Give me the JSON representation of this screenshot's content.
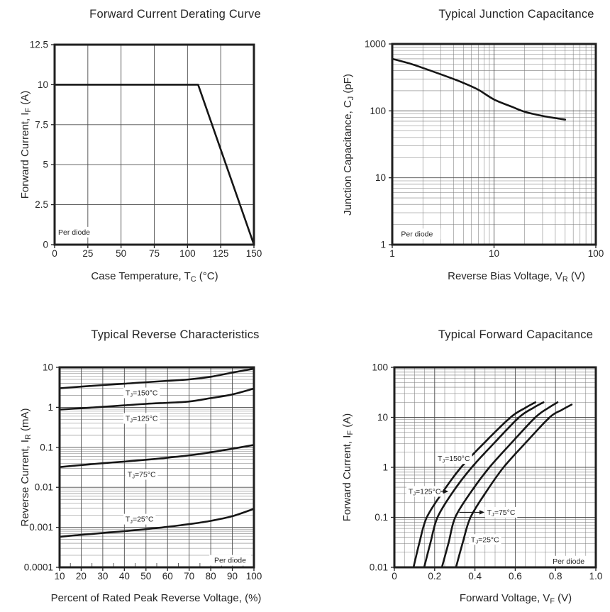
{
  "style": {
    "background": "#ffffff",
    "text_color": "#262626",
    "frame_color": "#1f1f1f",
    "curve_color": "#161616",
    "grid_major_color": "#4d4d4d",
    "grid_minor_color": "#7e7e7e"
  },
  "chart_data": [
    {
      "type": "line",
      "title": "Forward Current Derating Curve",
      "xlabel": "Case Temperature, T_C_ (°C)",
      "ylabel": "Forward Current, I_F_ (A)",
      "x_axis": {
        "scale": "linear",
        "min": 0,
        "max": 150,
        "grid": [
          25,
          50,
          75,
          100,
          125
        ],
        "ticks": [
          {
            "v": 0,
            "label": "0"
          },
          {
            "v": 25,
            "label": "25"
          },
          {
            "v": 50,
            "label": "50"
          },
          {
            "v": 75,
            "label": "75"
          },
          {
            "v": 100,
            "label": "100"
          },
          {
            "v": 125,
            "label": "125"
          },
          {
            "v": 150,
            "label": "150"
          }
        ]
      },
      "y_axis": {
        "scale": "linear",
        "min": 0,
        "max": 12.5,
        "grid": [
          2.5,
          5,
          7.5,
          10
        ],
        "ticks": [
          {
            "v": 0,
            "label": "0"
          },
          {
            "v": 2.5,
            "label": "2.5"
          },
          {
            "v": 5,
            "label": "5"
          },
          {
            "v": 7.5,
            "label": "7.5"
          },
          {
            "v": 10,
            "label": "10"
          },
          {
            "v": 12.5,
            "label": "12.5"
          }
        ]
      },
      "series": [
        {
          "name": "max-forward-current",
          "smooth": false,
          "points": [
            [
              0,
              10
            ],
            [
              108,
              10
            ],
            [
              150,
              0
            ]
          ]
        }
      ],
      "annotations": [
        {
          "text": "Per diode",
          "x": 2.7,
          "y": 0.78,
          "anchor": "start"
        }
      ]
    },
    {
      "type": "line",
      "title": "Typical Junction Capacitance",
      "xlabel": "Reverse Bias Voltage, V_R_ (V)",
      "ylabel": "Junction Capacitance, C_J_ (pF)",
      "x_axis": {
        "scale": "log",
        "min": 1,
        "max": 100,
        "grid": [
          10
        ],
        "minor": "log",
        "ticks": [
          {
            "v": 1,
            "label": "1"
          },
          {
            "v": 10,
            "label": "10"
          },
          {
            "v": 100,
            "label": "100"
          }
        ]
      },
      "y_axis": {
        "scale": "log",
        "min": 1,
        "max": 1000,
        "grid": [
          10,
          100
        ],
        "minor": "log",
        "ticks": [
          {
            "v": 1,
            "label": "1"
          },
          {
            "v": 10,
            "label": "10"
          },
          {
            "v": 100,
            "label": "100"
          },
          {
            "v": 1000,
            "label": "1000"
          }
        ]
      },
      "series": [
        {
          "name": "junction-capacitance",
          "points": [
            [
              1,
              600
            ],
            [
              1.5,
              508
            ],
            [
              2,
              438
            ],
            [
              3,
              352
            ],
            [
              5,
              262
            ],
            [
              7,
              207
            ],
            [
              10,
              148
            ],
            [
              15,
              115
            ],
            [
              20,
              97
            ],
            [
              30,
              84
            ],
            [
              40,
              78
            ],
            [
              50,
              74
            ]
          ]
        }
      ],
      "annotations": [
        {
          "text": "Per diode",
          "x": 1.22,
          "y": 1.45,
          "anchor": "start"
        }
      ]
    },
    {
      "type": "line",
      "title": "Typical Reverse Characteristics",
      "xlabel": "Percent of Rated Peak Reverse Voltage, (%)",
      "ylabel": "Reverse Current, I_R_ (mA)",
      "x_axis": {
        "scale": "linear",
        "min": 10,
        "max": 100,
        "grid": [
          20,
          30,
          40,
          50,
          60,
          70,
          80,
          90
        ],
        "inner_ticks": [
          15,
          25,
          35,
          45,
          55,
          65,
          75,
          85,
          95
        ],
        "ticks": [
          {
            "v": 10,
            "label": "10"
          },
          {
            "v": 20,
            "label": "20"
          },
          {
            "v": 30,
            "label": "30"
          },
          {
            "v": 40,
            "label": "40"
          },
          {
            "v": 50,
            "label": "50"
          },
          {
            "v": 60,
            "label": "60"
          },
          {
            "v": 70,
            "label": "70"
          },
          {
            "v": 80,
            "label": "80"
          },
          {
            "v": 90,
            "label": "90"
          },
          {
            "v": 100,
            "label": "100"
          }
        ]
      },
      "y_axis": {
        "scale": "log",
        "min": 0.0001,
        "max": 10,
        "grid": [
          0.001,
          0.01,
          0.1,
          1
        ],
        "minor": "log",
        "ticks": [
          {
            "v": 10,
            "label": "10"
          },
          {
            "v": 1,
            "label": "1"
          },
          {
            "v": 0.1,
            "label": "0.1"
          },
          {
            "v": 0.01,
            "label": "0.01"
          },
          {
            "v": 0.001,
            "label": "0.001"
          },
          {
            "v": 0.0001,
            "label": "0.0001"
          }
        ]
      },
      "series": [
        {
          "name": "TJ=150C",
          "points": [
            [
              10,
              3.0
            ],
            [
              20,
              3.3
            ],
            [
              30,
              3.6
            ],
            [
              40,
              3.9
            ],
            [
              50,
              4.25
            ],
            [
              60,
              4.6
            ],
            [
              70,
              5.0
            ],
            [
              80,
              5.8
            ],
            [
              90,
              7.4
            ],
            [
              100,
              9.2
            ]
          ]
        },
        {
          "name": "TJ=125C",
          "points": [
            [
              10,
              0.88
            ],
            [
              20,
              0.95
            ],
            [
              30,
              1.03
            ],
            [
              40,
              1.12
            ],
            [
              50,
              1.22
            ],
            [
              60,
              1.3
            ],
            [
              70,
              1.4
            ],
            [
              80,
              1.7
            ],
            [
              90,
              2.1
            ],
            [
              100,
              2.95
            ]
          ]
        },
        {
          "name": "TJ=75C",
          "points": [
            [
              10,
              0.032
            ],
            [
              20,
              0.036
            ],
            [
              30,
              0.04
            ],
            [
              40,
              0.044
            ],
            [
              50,
              0.049
            ],
            [
              60,
              0.055
            ],
            [
              70,
              0.063
            ],
            [
              80,
              0.075
            ],
            [
              90,
              0.092
            ],
            [
              100,
              0.115
            ]
          ]
        },
        {
          "name": "TJ=25C",
          "points": [
            [
              10,
              0.00058
            ],
            [
              20,
              0.00065
            ],
            [
              30,
              0.00072
            ],
            [
              40,
              0.0008
            ],
            [
              50,
              0.0009
            ],
            [
              60,
              0.00103
            ],
            [
              70,
              0.0012
            ],
            [
              80,
              0.00145
            ],
            [
              90,
              0.0019
            ],
            [
              100,
              0.0029
            ]
          ]
        }
      ],
      "annotations": [
        {
          "text": "T_J_=150°C",
          "x": 48,
          "y": 2.3,
          "anchor": "middle"
        },
        {
          "text": "T_J_=125°C",
          "x": 48,
          "y": 0.53,
          "anchor": "middle"
        },
        {
          "text": "T_J_=75°C",
          "x": 48,
          "y": 0.021,
          "anchor": "middle"
        },
        {
          "text": "T_J_=25°C",
          "x": 47,
          "y": 0.0016,
          "anchor": "middle"
        },
        {
          "text": "Per diode",
          "x": 89,
          "y": 0.00015,
          "anchor": "middle"
        }
      ]
    },
    {
      "type": "line",
      "title": "Typical Forward Capacitance",
      "xlabel": "Forward Voltage, V_F_ (V)",
      "ylabel": "Forward Current, I_F_ (A)",
      "x_axis": {
        "scale": "linear",
        "min": 0,
        "max": 1.0,
        "grid": [
          0.2,
          0.4,
          0.6,
          0.8
        ],
        "minor_step": 0.05,
        "ticks": [
          {
            "v": 0,
            "label": "0"
          },
          {
            "v": 0.2,
            "label": "0.2"
          },
          {
            "v": 0.4,
            "label": "0.4"
          },
          {
            "v": 0.6,
            "label": "0.6"
          },
          {
            "v": 0.8,
            "label": "0.8"
          },
          {
            "v": 1.0,
            "label": "1.0"
          }
        ]
      },
      "y_axis": {
        "scale": "log",
        "min": 0.01,
        "max": 100,
        "grid": [
          0.1,
          1,
          10
        ],
        "minor": "log",
        "ticks": [
          {
            "v": 100,
            "label": "100"
          },
          {
            "v": 10,
            "label": "10"
          },
          {
            "v": 1,
            "label": "1"
          },
          {
            "v": 0.1,
            "label": "0.1"
          },
          {
            "v": 0.01,
            "label": "0.01"
          }
        ]
      },
      "series": [
        {
          "name": "TJ=150C",
          "points": [
            [
              0.095,
              0.01
            ],
            [
              0.125,
              0.032
            ],
            [
              0.161,
              0.1
            ],
            [
              0.24,
              0.32
            ],
            [
              0.331,
              1
            ],
            [
              0.45,
              3.2
            ],
            [
              0.577,
              10
            ],
            [
              0.65,
              15.5
            ],
            [
              0.7,
              20
            ]
          ]
        },
        {
          "name": "TJ=125C",
          "points": [
            [
              0.148,
              0.01
            ],
            [
              0.18,
              0.032
            ],
            [
              0.214,
              0.1
            ],
            [
              0.29,
              0.32
            ],
            [
              0.384,
              1
            ],
            [
              0.5,
              3.2
            ],
            [
              0.619,
              10
            ],
            [
              0.69,
              15.5
            ],
            [
              0.74,
              20
            ]
          ]
        },
        {
          "name": "TJ=75C",
          "points": [
            [
              0.236,
              0.01
            ],
            [
              0.27,
              0.032
            ],
            [
              0.302,
              0.1
            ],
            [
              0.38,
              0.32
            ],
            [
              0.472,
              1
            ],
            [
              0.585,
              3.2
            ],
            [
              0.7,
              10
            ],
            [
              0.765,
              15.5
            ],
            [
              0.81,
              20
            ]
          ]
        },
        {
          "name": "TJ=25C",
          "points": [
            [
              0.306,
              0.01
            ],
            [
              0.34,
              0.032
            ],
            [
              0.378,
              0.1
            ],
            [
              0.455,
              0.32
            ],
            [
              0.542,
              1
            ],
            [
              0.655,
              3.2
            ],
            [
              0.771,
              10
            ],
            [
              0.83,
              14
            ],
            [
              0.88,
              18
            ]
          ]
        }
      ],
      "annotations": [
        {
          "text": "T_J_=150°C",
          "x": 0.295,
          "y": 1.5,
          "anchor": "middle"
        },
        {
          "text": "T_J_=125°C",
          "x": 0.15,
          "y": 0.33,
          "anchor": "middle",
          "arrow": {
            "x1": 0.228,
            "x2": 0.268
          }
        },
        {
          "text": "T_J_=75°C",
          "x": 0.53,
          "y": 0.126,
          "anchor": "middle",
          "arrow": {
            "x1": 0.322,
            "x2": 0.447
          }
        },
        {
          "text": "T_J_=25°C",
          "x": 0.45,
          "y": 0.036,
          "anchor": "middle"
        },
        {
          "text": "Per diode",
          "x": 0.865,
          "y": 0.0133,
          "anchor": "middle"
        }
      ]
    }
  ]
}
